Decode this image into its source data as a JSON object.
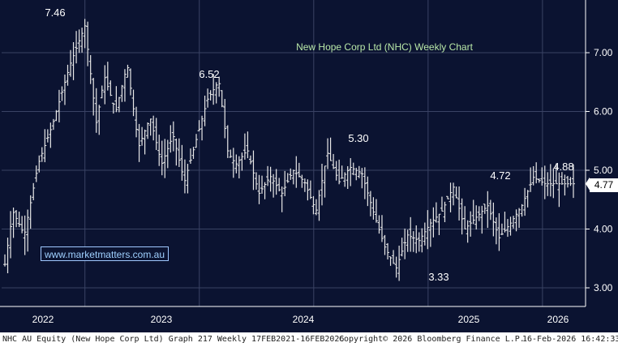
{
  "chart_data": {
    "type": "line",
    "style": "weekly OHLC bars",
    "title": "New Hope Corp Ltd (NHC) Weekly Chart",
    "ylim": [
      2.8,
      7.8
    ],
    "yticks": [
      "7.00",
      "6.00",
      "5.00",
      "4.00",
      "3.00"
    ],
    "x_tick_labels": [
      "2022",
      "2023",
      "2024",
      "2025",
      "2026"
    ],
    "grid": true,
    "axis_position": "right",
    "series": [
      {
        "x": [
          2021.13,
          2021.2,
          2021.3,
          2021.42,
          2021.55,
          2021.7,
          2021.83,
          2021.93,
          2022.0,
          2022.1,
          2022.2,
          2022.3,
          2022.4,
          2022.5,
          2022.6,
          2022.7,
          2022.8,
          2022.9,
          2023.0,
          2023.08,
          2023.15,
          2023.25,
          2023.35,
          2023.45,
          2023.55,
          2023.65,
          2023.75,
          2023.85,
          2023.95,
          2024.05,
          2024.15,
          2024.25,
          2024.35,
          2024.45,
          2024.55,
          2024.65,
          2024.75,
          2024.85,
          2024.95,
          2025.05,
          2025.15,
          2025.25,
          2025.35,
          2025.45,
          2025.55,
          2025.65,
          2025.75,
          2025.85,
          2025.95,
          2026.02,
          2026.1
        ],
        "values": [
          3.4,
          4.3,
          3.9,
          5.1,
          5.8,
          6.8,
          7.46,
          5.8,
          6.6,
          6.0,
          6.8,
          5.4,
          5.9,
          5.1,
          5.6,
          4.8,
          5.5,
          6.2,
          6.52,
          5.3,
          5.1,
          5.35,
          4.6,
          4.9,
          4.6,
          5.0,
          4.8,
          4.3,
          5.3,
          4.8,
          5.05,
          4.95,
          4.3,
          3.7,
          3.33,
          3.9,
          3.8,
          4.1,
          4.3,
          4.72,
          4.0,
          4.2,
          4.4,
          3.85,
          4.1,
          4.4,
          4.88,
          4.77,
          4.77,
          4.77,
          4.77
        ]
      }
    ],
    "annotations": [
      "7.46",
      "6.52",
      "5.30",
      "4.72",
      "4.88",
      "3.33"
    ],
    "last_value": "4.77"
  },
  "watermark": "www.marketmatters.com.au",
  "footer": {
    "left": "NHC AU Equity (New Hope Corp Ltd) Graph 217 Weekly 17FEB2021-16FEB2026",
    "middle": "Copyright© 2026 Bloomberg Finance L.P.",
    "right": "16-Feb-2026 16:42:33"
  },
  "colors": {
    "background": "#0b1331",
    "bars": "#e8e8e8",
    "title": "#b9e8a8",
    "grid": "#3a4364"
  }
}
